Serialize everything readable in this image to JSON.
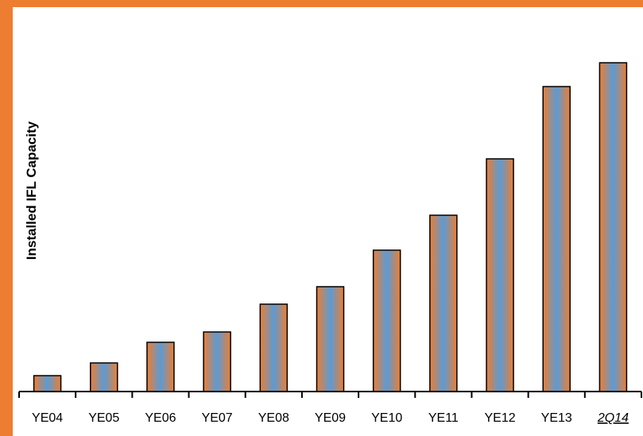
{
  "chart_data": {
    "type": "bar",
    "ylabel": "Installed IFL Capacity",
    "xlabel": "",
    "title": "",
    "categories": [
      "YE04",
      "YE05",
      "YE06",
      "YE07",
      "YE08",
      "YE09",
      "YE10",
      "YE11",
      "YE12",
      "YE13",
      "2Q14"
    ],
    "values": [
      20,
      36,
      62,
      75,
      110,
      132,
      178,
      222,
      293,
      384,
      414
    ],
    "ylim": [
      0,
      420
    ],
    "grid": false,
    "legend": "none",
    "colors": {
      "bar_edge": "#ED7D31",
      "bar_center": "#5B9BD5",
      "outline": "#000000",
      "frame": "#ED7D31"
    }
  }
}
